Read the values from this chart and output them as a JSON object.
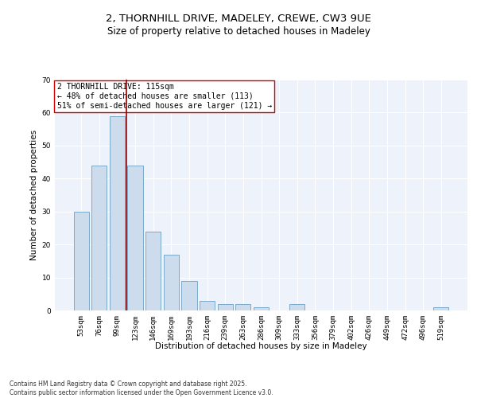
{
  "title_line1": "2, THORNHILL DRIVE, MADELEY, CREWE, CW3 9UE",
  "title_line2": "Size of property relative to detached houses in Madeley",
  "xlabel": "Distribution of detached houses by size in Madeley",
  "ylabel": "Number of detached properties",
  "categories": [
    "53sqm",
    "76sqm",
    "99sqm",
    "123sqm",
    "146sqm",
    "169sqm",
    "193sqm",
    "216sqm",
    "239sqm",
    "263sqm",
    "286sqm",
    "309sqm",
    "333sqm",
    "356sqm",
    "379sqm",
    "402sqm",
    "426sqm",
    "449sqm",
    "472sqm",
    "496sqm",
    "519sqm"
  ],
  "values": [
    30,
    44,
    59,
    44,
    24,
    17,
    9,
    3,
    2,
    2,
    1,
    0,
    2,
    0,
    0,
    0,
    0,
    0,
    0,
    0,
    1
  ],
  "bar_color": "#ccdcec",
  "bar_edge_color": "#7aaac8",
  "background_color": "#eef2fb",
  "vline_x_index": 2,
  "vline_color": "#990000",
  "annotation_title": "2 THORNHILL DRIVE: 115sqm",
  "annotation_line2": "← 48% of detached houses are smaller (113)",
  "annotation_line3": "51% of semi-detached houses are larger (121) →",
  "annotation_box_color": "#cc0000",
  "ylim": [
    0,
    70
  ],
  "yticks": [
    0,
    10,
    20,
    30,
    40,
    50,
    60,
    70
  ],
  "footer": "Contains HM Land Registry data © Crown copyright and database right 2025.\nContains public sector information licensed under the Open Government Licence v3.0.",
  "title_fontsize": 9.5,
  "subtitle_fontsize": 8.5,
  "axis_label_fontsize": 7.5,
  "tick_fontsize": 6.5,
  "annot_fontsize": 7.0,
  "footer_fontsize": 5.5
}
